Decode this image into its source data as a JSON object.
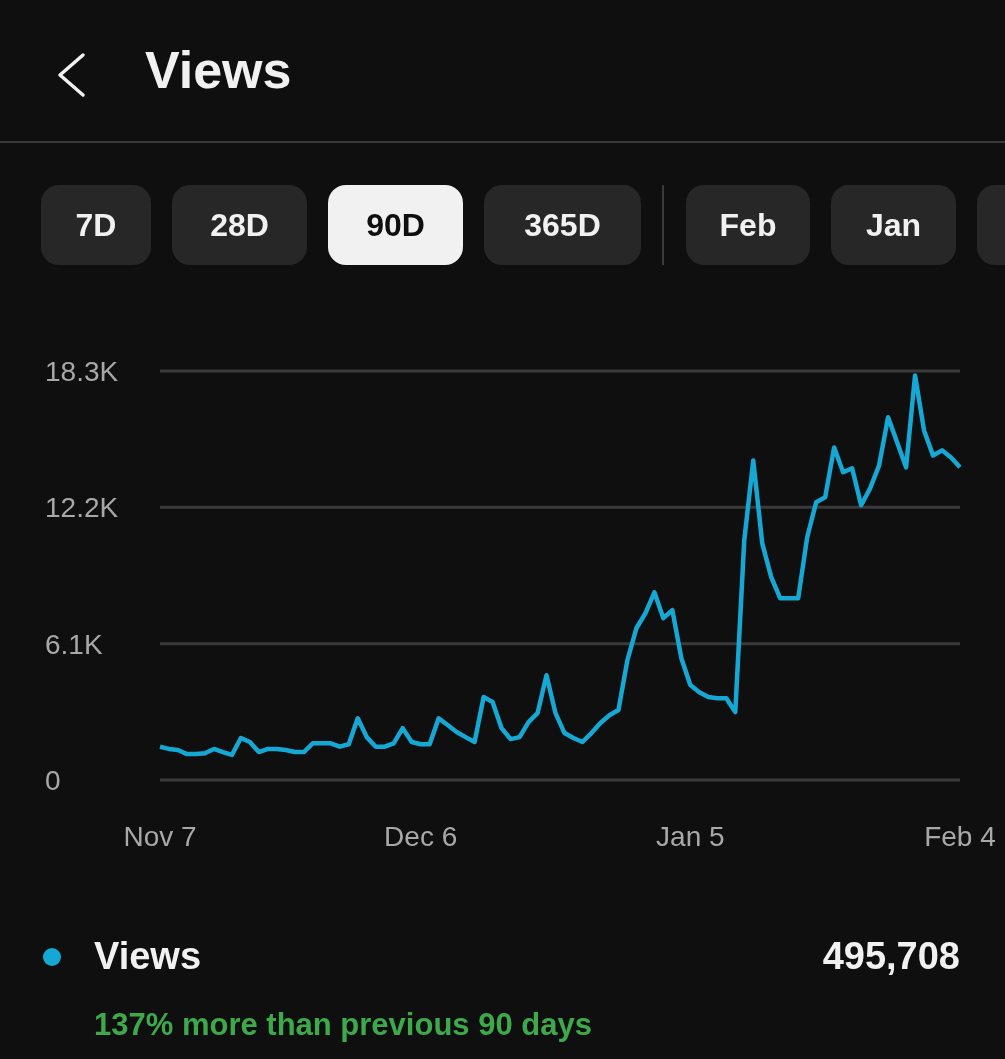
{
  "chart_data": {
    "type": "line",
    "title": "Views",
    "categories": [
      "Nov 7",
      null,
      null,
      null,
      null,
      null,
      null,
      null,
      null,
      null,
      null,
      null,
      null,
      null,
      null,
      null,
      null,
      null,
      null,
      null,
      null,
      null,
      null,
      null,
      null,
      null,
      null,
      null,
      null,
      "Dec 6",
      null,
      null,
      null,
      null,
      null,
      null,
      null,
      null,
      null,
      null,
      null,
      null,
      null,
      null,
      null,
      null,
      null,
      null,
      null,
      null,
      null,
      null,
      null,
      null,
      null,
      null,
      null,
      null,
      null,
      "Jan 5",
      null,
      null,
      null,
      null,
      null,
      null,
      null,
      null,
      null,
      null,
      null,
      null,
      null,
      null,
      null,
      null,
      null,
      null,
      null,
      null,
      null,
      null,
      null,
      null,
      null,
      null,
      null,
      null,
      null,
      "Feb 4"
    ],
    "series": [
      {
        "name": "Views",
        "color": "#15a8d4",
        "values": [
          1490,
          1390,
          1340,
          1160,
          1160,
          1200,
          1390,
          1250,
          1120,
          1880,
          1700,
          1250,
          1390,
          1390,
          1340,
          1250,
          1250,
          1640,
          1640,
          1640,
          1490,
          1600,
          2760,
          1920,
          1490,
          1490,
          1640,
          2320,
          1700,
          1600,
          1600,
          2760,
          2460,
          2150,
          1920,
          1700,
          3710,
          3490,
          2320,
          1830,
          1920,
          2590,
          2990,
          4690,
          2990,
          2100,
          1880,
          1700,
          2100,
          2550,
          2900,
          3130,
          5360,
          6790,
          7460,
          8400,
          7240,
          7600,
          5450,
          4250,
          3930,
          3710,
          3660,
          3660,
          3040,
          10730,
          14300,
          10590,
          9080,
          8130,
          8130,
          8130,
          10860,
          12430,
          12650,
          14880,
          13770,
          13950,
          12290,
          13050,
          14080,
          16230,
          15110,
          13990,
          18100,
          15640,
          14520,
          14750,
          14430,
          13990
        ]
      }
    ],
    "ylim": [
      0,
      18300
    ],
    "yticks": [
      0,
      {
        "value": 6100,
        "label": "6.1K"
      },
      {
        "value": 12200,
        "label": "12.2K"
      },
      {
        "value": 18300,
        "label": "18.3K"
      }
    ],
    "grid": "y",
    "legend": "bottom",
    "marker": "none",
    "line_style": "solid",
    "annotations": [
      "7D",
      "28D",
      "90D",
      "365D",
      "Feb",
      "Jan",
      "495,708",
      "137% more than previous 90 days"
    ]
  }
}
